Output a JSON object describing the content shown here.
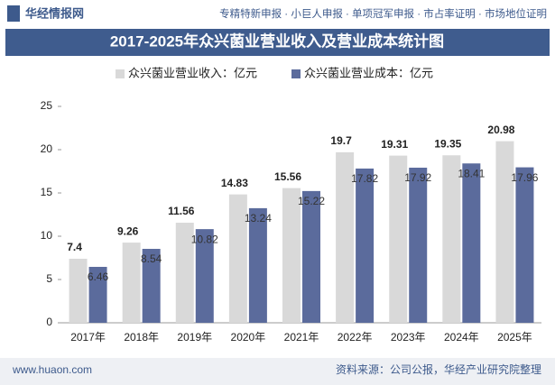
{
  "header": {
    "site": "华经情报网",
    "links": "专精特新申报 · 小巨人申报 · 单项冠军申报 · 市占率证明 · 市场地位证明"
  },
  "footer": {
    "url": "www.huaon.com",
    "source": "资料来源：公司公报，华经产业研究院整理"
  },
  "chart_data": {
    "type": "bar",
    "title": "2017-2025年众兴菌业营业收入及营业成本统计图",
    "categories": [
      "2017年",
      "2018年",
      "2019年",
      "2020年",
      "2021年",
      "2022年",
      "2023年",
      "2024年",
      "2025年"
    ],
    "series": [
      {
        "name": "众兴菌业营业收入：亿元",
        "color": "#d9d9d9",
        "values": [
          7.4,
          9.26,
          11.56,
          14.83,
          15.56,
          19.7,
          19.31,
          19.35,
          20.98
        ]
      },
      {
        "name": "众兴菌业营业成本：亿元",
        "color": "#5b6b9c",
        "values": [
          6.46,
          8.54,
          10.82,
          13.24,
          15.22,
          17.82,
          17.92,
          18.41,
          17.96
        ]
      }
    ],
    "ylim": [
      0,
      25
    ],
    "yticks": [
      0,
      5,
      10,
      15,
      20,
      25
    ],
    "grid": false,
    "legend": "top"
  }
}
